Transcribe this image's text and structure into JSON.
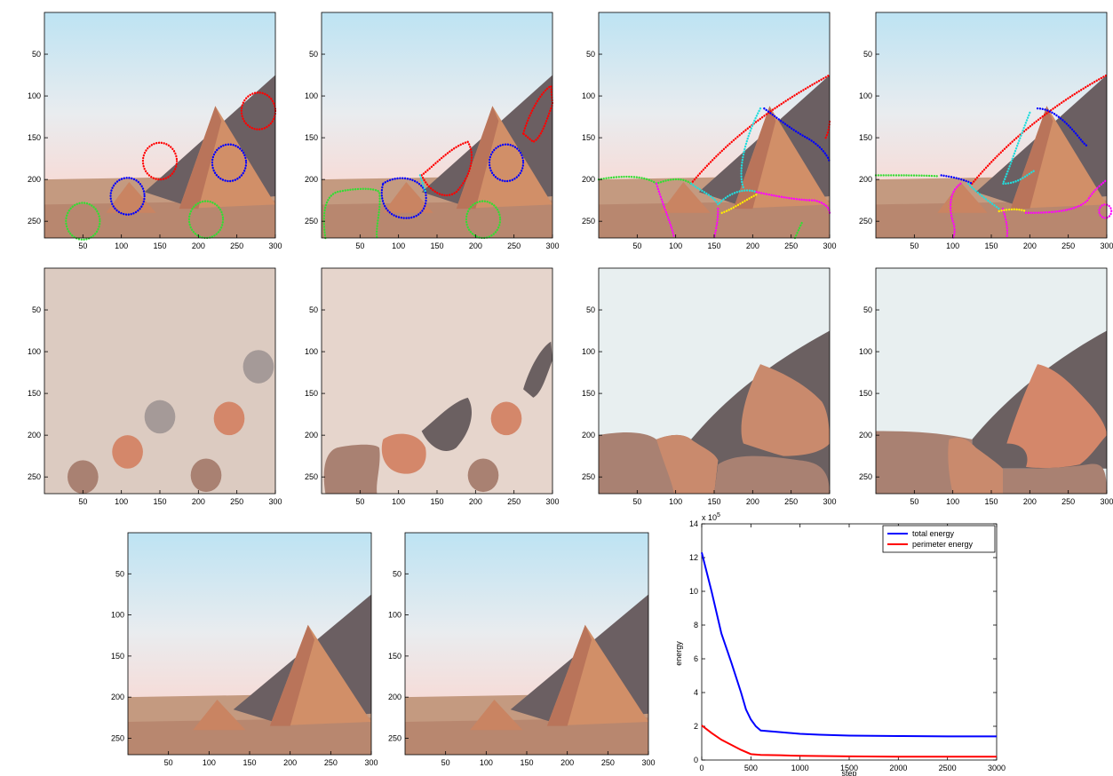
{
  "figure": {
    "image_axis": {
      "xticks": [
        "50",
        "100",
        "150",
        "200",
        "250",
        "300"
      ],
      "yticks": [
        "50",
        "100",
        "150",
        "200",
        "250"
      ]
    },
    "colors": {
      "sky_top": "#bde3f3",
      "sky_bottom": "#f6dcd8",
      "sand": "#c49a80",
      "pyramid_light": "#d18f68",
      "pyramid_dark": "#6b5f62",
      "contour_red": "#ff0000",
      "contour_blue": "#0000ff",
      "contour_green": "#33dd33",
      "contour_cyan": "#22dddd",
      "contour_magenta": "#ff00ff",
      "contour_yellow": "#ffee00",
      "seg_bg_1": "#dccbc1",
      "seg_bg_2": "#e6d5cc",
      "seg_sky": "#e8eff0",
      "seg_sand": "#a98172",
      "seg_orange": "#d4876a",
      "seg_orange2": "#c98a6d",
      "seg_dark": "#6b6061",
      "seg_gray": "#a59a98"
    }
  },
  "chart_data": {
    "type": "line",
    "xlabel": "step",
    "ylabel": "energy",
    "exponent": "x 10",
    "exponent_power": "5",
    "xlim": [
      0,
      3000
    ],
    "ylim": [
      0,
      14
    ],
    "xticks": [
      "0",
      "500",
      "1000",
      "1500",
      "2000",
      "2500",
      "3000"
    ],
    "yticks": [
      "0",
      "2",
      "4",
      "6",
      "8",
      "10",
      "12",
      "14"
    ],
    "legend_position": "top-right",
    "series": [
      {
        "name": "total energy",
        "color": "#0000ff",
        "x": [
          0,
          100,
          200,
          300,
          400,
          450,
          500,
          550,
          600,
          800,
          1000,
          1200,
          1500,
          2000,
          2500,
          3000
        ],
        "y": [
          12.3,
          10.0,
          7.5,
          5.8,
          4.0,
          3.0,
          2.4,
          2.0,
          1.75,
          1.65,
          1.55,
          1.5,
          1.45,
          1.42,
          1.4,
          1.4
        ]
      },
      {
        "name": "perimeter energy",
        "color": "#ff0000",
        "x": [
          0,
          100,
          200,
          300,
          400,
          500,
          600,
          800,
          1000,
          1500,
          2000,
          3000
        ],
        "y": [
          2.05,
          1.6,
          1.2,
          0.9,
          0.6,
          0.35,
          0.3,
          0.28,
          0.25,
          0.22,
          0.2,
          0.2
        ]
      }
    ]
  }
}
